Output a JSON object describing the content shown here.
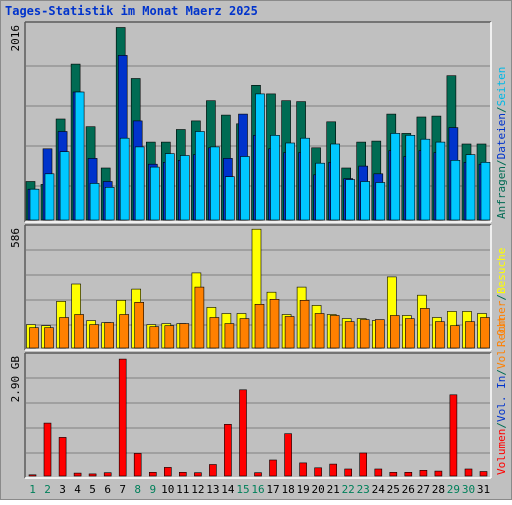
{
  "chart_data": {
    "type": "bar",
    "title": "Tages-Statistik im Monat Maerz 2025",
    "categories": [
      "1",
      "2",
      "3",
      "4",
      "5",
      "6",
      "7",
      "8",
      "9",
      "10",
      "11",
      "12",
      "13",
      "14",
      "15",
      "16",
      "17",
      "18",
      "19",
      "20",
      "21",
      "22",
      "23",
      "24",
      "25",
      "26",
      "27",
      "28",
      "29",
      "30",
      "31"
    ],
    "weekend_days": [
      "1",
      "2",
      "8",
      "9",
      "15",
      "16",
      "22",
      "23",
      "29",
      "30"
    ],
    "panels": [
      {
        "id": "requests",
        "ymax_label": "2016",
        "ylim": [
          0,
          2016
        ],
        "right_labels": [
          {
            "text": "Anfragen",
            "color": "#006b53"
          },
          {
            "text": "/",
            "color": "#006b53"
          },
          {
            "text": "Dateien",
            "color": "#0033cc"
          },
          {
            "text": "/",
            "color": "#006b53"
          },
          {
            "text": "Seiten",
            "color": "#00b8e6"
          }
        ],
        "series": [
          {
            "name": "Anfragen",
            "color": "#006b53",
            "values": [
              400,
              370,
              1050,
              1620,
              970,
              540,
              2000,
              1470,
              810,
              810,
              940,
              1030,
              1240,
              1090,
              1000,
              1400,
              1310,
              1240,
              1230,
              750,
              1020,
              540,
              810,
              820,
              1100,
              900,
              1070,
              1080,
              1500,
              790,
              790
            ]
          },
          {
            "name": "Dateien",
            "color": "#0033cc",
            "values": [
              320,
              740,
              920,
              1330,
              640,
              400,
              1710,
              1030,
              580,
              600,
              620,
              680,
              750,
              640,
              1100,
              880,
              740,
              700,
              700,
              470,
              600,
              430,
              560,
              480,
              720,
              660,
              720,
              700,
              960,
              600,
              580
            ]
          },
          {
            "name": "Seiten",
            "color": "#00c8ff",
            "values": [
              320,
              480,
              710,
              1330,
              380,
              340,
              850,
              760,
              550,
              690,
              670,
              920,
              760,
              450,
              660,
              1310,
              880,
              800,
              850,
              590,
              790,
              420,
              400,
              390,
              900,
              880,
              840,
              810,
              620,
              680,
              600
            ]
          }
        ]
      },
      {
        "id": "visits",
        "ymax_label": "586",
        "ylim": [
          0,
          586
        ],
        "right_labels": [
          {
            "text": "Rechner",
            "color": "#ff8000"
          },
          {
            "text": "/",
            "color": "#006b53"
          },
          {
            "text": "Besuche",
            "color": "#ffff00"
          }
        ],
        "series": [
          {
            "name": "Besuche",
            "color": "#ffff00",
            "values": [
              115,
              110,
              230,
              315,
              135,
              125,
              235,
              290,
              115,
              120,
              120,
              370,
              200,
              170,
              170,
              585,
              275,
              165,
              300,
              210,
              165,
              145,
              145,
              135,
              350,
              160,
              260,
              150,
              180,
              180,
              170
            ]
          },
          {
            "name": "Rechner",
            "color": "#ff8000",
            "values": [
              100,
              100,
              150,
              165,
              115,
              125,
              165,
              225,
              105,
              110,
              120,
              300,
              150,
              120,
              145,
              215,
              240,
              155,
              235,
              170,
              160,
              130,
              140,
              140,
              160,
              145,
              195,
              130,
              110,
              130,
              150
            ]
          }
        ]
      },
      {
        "id": "volume",
        "ymax_label": "2.90 GB",
        "ylim": [
          0,
          2.9
        ],
        "right_labels": [
          {
            "text": "Volumen",
            "color": "#ff0000"
          },
          {
            "text": "/",
            "color": "#006b53"
          },
          {
            "text": "Vol. In",
            "color": "#0033cc"
          },
          {
            "text": "/",
            "color": "#006b53"
          },
          {
            "text": "Vol. Out",
            "color": "#ff8000"
          }
        ],
        "series": [
          {
            "name": "Volumen",
            "color": "#ff0000",
            "values": [
              0.03,
              1.29,
              0.94,
              0.07,
              0.05,
              0.08,
              2.85,
              0.55,
              0.09,
              0.21,
              0.09,
              0.08,
              0.28,
              1.26,
              2.1,
              0.08,
              0.39,
              1.03,
              0.32,
              0.2,
              0.29,
              0.17,
              0.56,
              0.17,
              0.09,
              0.09,
              0.14,
              0.12,
              1.98,
              0.17,
              0.11
            ]
          }
        ]
      }
    ],
    "colors": {
      "background": "#c0c0c0",
      "grid": "#808080",
      "title": "#0033cc",
      "weekday_label": "#000000",
      "weekend_label": "#00805a"
    }
  }
}
